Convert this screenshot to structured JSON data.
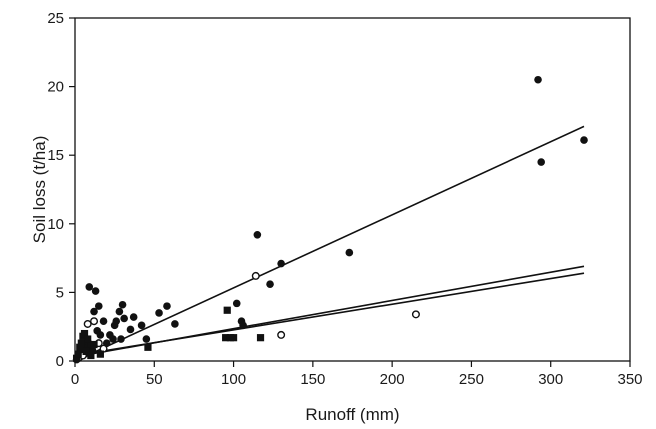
{
  "chart_data": {
    "type": "scatter",
    "title": "",
    "xlabel": "Runoff (mm)",
    "ylabel": "Soil loss (t/ha)",
    "xlim": [
      0,
      350
    ],
    "ylim": [
      0,
      25
    ],
    "x_ticks": [
      "0",
      "50",
      "100",
      "150",
      "200",
      "250",
      "300",
      "350"
    ],
    "y_ticks": [
      "0",
      "5",
      "10",
      "15",
      "20",
      "25"
    ],
    "grid": false,
    "legend": "none",
    "colors": {
      "marker": "#111111",
      "line": "#111111",
      "axis": "#111111"
    },
    "series": [
      {
        "marker": "filled-circle",
        "points": [
          [
            1,
            0.1
          ],
          [
            2,
            0.3
          ],
          [
            3,
            0.6
          ],
          [
            4,
            0.9
          ],
          [
            5,
            1.1
          ],
          [
            6,
            0.5
          ],
          [
            7,
            1.0
          ],
          [
            8,
            1.4
          ],
          [
            9,
            5.4
          ],
          [
            10,
            1.2
          ],
          [
            11,
            0.8
          ],
          [
            12,
            3.6
          ],
          [
            13,
            5.1
          ],
          [
            14,
            2.2
          ],
          [
            15,
            4.0
          ],
          [
            16,
            1.9
          ],
          [
            18,
            2.9
          ],
          [
            20,
            1.3
          ],
          [
            22,
            1.9
          ],
          [
            24,
            1.6
          ],
          [
            25,
            2.6
          ],
          [
            26,
            2.9
          ],
          [
            28,
            3.6
          ],
          [
            29,
            1.6
          ],
          [
            30,
            4.1
          ],
          [
            31,
            3.1
          ],
          [
            35,
            2.3
          ],
          [
            37,
            3.2
          ],
          [
            42,
            2.6
          ],
          [
            45,
            1.6
          ],
          [
            53,
            3.5
          ],
          [
            58,
            4.0
          ],
          [
            63,
            2.7
          ],
          [
            102,
            4.2
          ],
          [
            105,
            2.9
          ],
          [
            106,
            2.6
          ],
          [
            115,
            9.2
          ],
          [
            123,
            5.6
          ],
          [
            130,
            7.1
          ],
          [
            173,
            7.9
          ],
          [
            292,
            20.5
          ],
          [
            294,
            14.5
          ],
          [
            321,
            16.1
          ]
        ],
        "trend": [
          [
            0,
            0.0
          ],
          [
            321,
            17.1
          ]
        ]
      },
      {
        "marker": "open-circle",
        "points": [
          [
            3,
            0.3
          ],
          [
            5,
            0.4
          ],
          [
            8,
            2.7
          ],
          [
            12,
            2.9
          ],
          [
            15,
            1.3
          ],
          [
            18,
            0.9
          ],
          [
            114,
            6.2
          ],
          [
            130,
            1.9
          ],
          [
            215,
            3.4
          ]
        ],
        "trend": [
          [
            0,
            0.3
          ],
          [
            321,
            6.9
          ]
        ]
      },
      {
        "marker": "filled-square",
        "points": [
          [
            1,
            0.2
          ],
          [
            2,
            0.5
          ],
          [
            3,
            1.0
          ],
          [
            4,
            1.3
          ],
          [
            5,
            1.8
          ],
          [
            6,
            2.0
          ],
          [
            7,
            0.7
          ],
          [
            8,
            1.6
          ],
          [
            10,
            0.4
          ],
          [
            12,
            1.2
          ],
          [
            16,
            0.5
          ],
          [
            46,
            1.0
          ],
          [
            95,
            1.7
          ],
          [
            96,
            3.7
          ],
          [
            98,
            1.7
          ],
          [
            100,
            1.7
          ],
          [
            117,
            1.7
          ]
        ],
        "trend": [
          [
            0,
            0.4
          ],
          [
            321,
            6.4
          ]
        ]
      }
    ]
  }
}
